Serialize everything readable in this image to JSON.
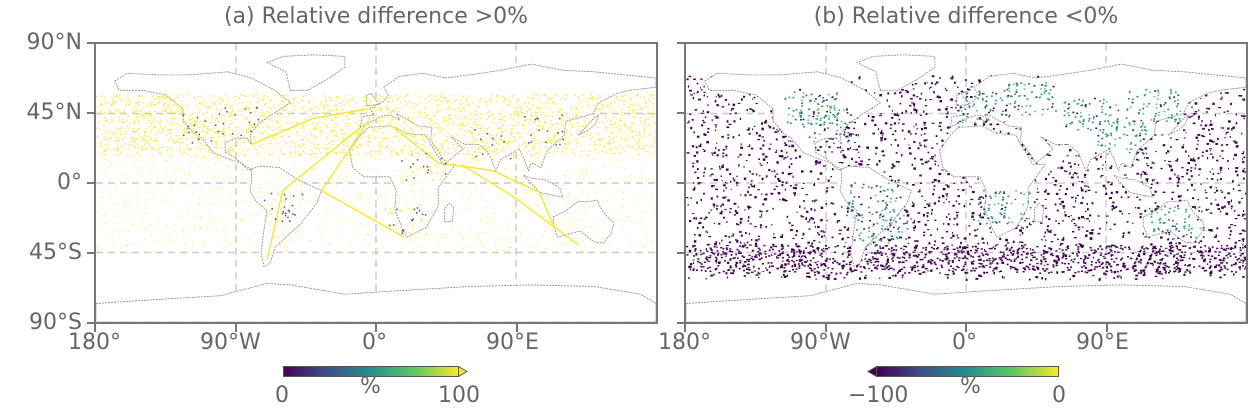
{
  "panels": [
    {
      "title": "(a) Relative difference >0%",
      "colorbar": {
        "min_label": "0",
        "max_label": "100",
        "unit": "%",
        "extend": "max"
      }
    },
    {
      "title": "(b) Relative difference <0%",
      "colorbar": {
        "min_label": "−100",
        "max_label": "0",
        "unit": "%",
        "extend": "min"
      }
    }
  ],
  "axes": {
    "lat_labels": [
      "90°N",
      "45°N",
      "0°",
      "45°S",
      "90°S"
    ],
    "lon_labels": [
      "180°",
      "90°W",
      "0°",
      "90°E"
    ]
  },
  "colors": {
    "viridis": [
      "#440154",
      "#3b528b",
      "#21918c",
      "#5ec962",
      "#fde725"
    ],
    "gridline": "#cccccc",
    "coastline": "#888888"
  }
}
